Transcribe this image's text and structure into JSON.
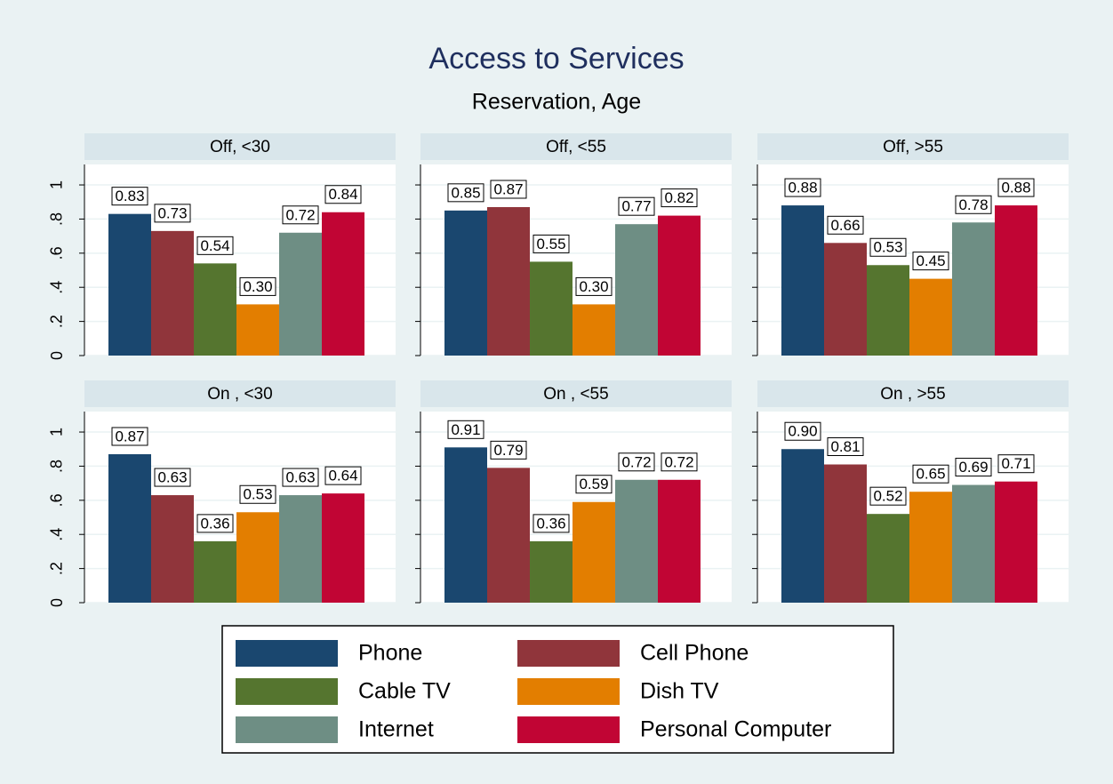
{
  "chart_data": {
    "type": "bar",
    "title": "Access to Services",
    "subtitle": "Reservation, Age",
    "panels": [
      "Off, <30",
      "Off, <55",
      "Off, >55",
      "On , <30",
      "On , <55",
      "On , >55"
    ],
    "ylim": [
      0,
      1.12
    ],
    "yticks": [
      0,
      {
        "value": 0.2,
        "label": ".2"
      },
      {
        "value": 0.4,
        "label": ".4"
      },
      {
        "value": 0.6,
        "label": ".6"
      },
      {
        "value": 0.8,
        "label": ".8"
      },
      1
    ],
    "grid": true,
    "series": [
      {
        "name": "Phone",
        "color": "#1a476f",
        "values": [
          0.83,
          0.85,
          0.88,
          0.87,
          0.91,
          0.9
        ],
        "value_labels": [
          "0.83",
          "0.85",
          "0.88",
          "0.87",
          "0.91",
          "0.90"
        ]
      },
      {
        "name": "Cell Phone",
        "color": "#90353b",
        "values": [
          0.73,
          0.87,
          0.66,
          0.63,
          0.79,
          0.81
        ],
        "value_labels": [
          "0.73",
          "0.87",
          "0.66",
          "0.63",
          "0.79",
          "0.81"
        ]
      },
      {
        "name": "Cable TV",
        "color": "#55752f",
        "values": [
          0.54,
          0.55,
          0.53,
          0.36,
          0.36,
          0.52
        ],
        "value_labels": [
          "0.54",
          "0.55",
          "0.53",
          "0.36",
          "0.36",
          "0.52"
        ]
      },
      {
        "name": "Dish TV",
        "color": "#e37e00",
        "values": [
          0.3,
          0.3,
          0.45,
          0.53,
          0.59,
          0.65
        ],
        "value_labels": [
          "0.30",
          "0.30",
          "0.45",
          "0.53",
          "0.59",
          "0.65"
        ]
      },
      {
        "name": "Internet",
        "color": "#6e8e84",
        "values": [
          0.72,
          0.77,
          0.78,
          0.63,
          0.72,
          0.69
        ],
        "value_labels": [
          "0.72",
          "0.77",
          "0.78",
          "0.63",
          "0.72",
          "0.69"
        ]
      },
      {
        "name": "Personal Computer",
        "color": "#c10534",
        "values": [
          0.84,
          0.82,
          0.88,
          0.64,
          0.72,
          0.71
        ],
        "value_labels": [
          "0.84",
          "0.82",
          "0.88",
          "0.64",
          "0.72",
          "0.71"
        ]
      }
    ]
  }
}
